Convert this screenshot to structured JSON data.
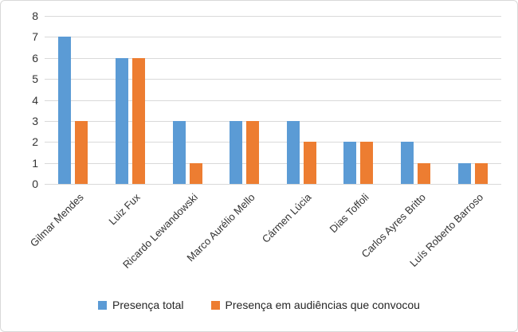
{
  "chart_data": {
    "type": "bar",
    "title": "",
    "categories": [
      "Gilmar Mendes",
      "Luiz Fux",
      "Ricardo Lewandowski",
      "Marco Aurélio Mello",
      "Cármen Lúcia",
      "Dias Toffoli",
      "Carlos Ayres Britto",
      "Luís Roberto Barroso"
    ],
    "series": [
      {
        "name": "Presença total",
        "color": "#5B9BD5",
        "values": [
          7,
          6,
          3,
          3,
          3,
          2,
          2,
          1
        ]
      },
      {
        "name": "Presença em audiências que convocou",
        "color": "#ED7D31",
        "values": [
          3,
          6,
          1,
          3,
          2,
          2,
          1,
          1
        ]
      }
    ],
    "xlabel": "",
    "ylabel": "",
    "ylim": [
      0,
      8
    ],
    "yticks": [
      0,
      1,
      2,
      3,
      4,
      5,
      6,
      7,
      8
    ],
    "grid": true,
    "legend_position": "bottom"
  },
  "colors": {
    "grid": "#D9D9D9",
    "axis_text": "#333333",
    "border": "#D9D9D9",
    "background": "#FFFFFF"
  }
}
